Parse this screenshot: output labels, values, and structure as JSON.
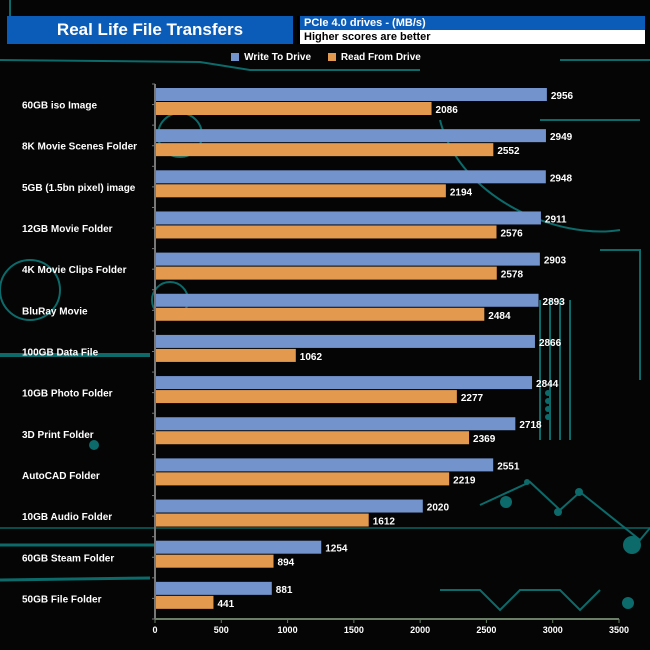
{
  "header": {
    "title": "Real Life File Transfers",
    "subtitle_units": "PCIe 4.0 drives - (MB/s)",
    "subtitle_note": "Higher scores are better"
  },
  "colors": {
    "write": "#7393cd",
    "read": "#e39a4f",
    "title_bg": "#0a5cb8",
    "decor": "#0d6a6a"
  },
  "chart_data": {
    "type": "bar",
    "orientation": "horizontal",
    "title": "Real Life File Transfers",
    "xlabel": "",
    "ylabel": "",
    "xlim": [
      0,
      3500
    ],
    "xticks": [
      0,
      500,
      1000,
      1500,
      2000,
      2500,
      3000,
      3500
    ],
    "legend_position": "top-center",
    "grid": false,
    "categories": [
      "60GB iso Image",
      "8K Movie Scenes Folder",
      "5GB (1.5bn pixel) image",
      "12GB Movie Folder",
      "4K Movie Clips Folder",
      "BluRay Movie",
      "100GB Data File",
      "10GB Photo Folder",
      "3D Print Folder",
      "AutoCAD Folder",
      "10GB Audio Folder",
      "60GB Steam Folder",
      "50GB File Folder"
    ],
    "series": [
      {
        "name": "Write To  Drive",
        "values": [
          2956,
          2949,
          2948,
          2911,
          2903,
          2893,
          2866,
          2844,
          2718,
          2551,
          2020,
          1254,
          881
        ]
      },
      {
        "name": "Read From  Drive",
        "values": [
          2086,
          2552,
          2194,
          2576,
          2578,
          2484,
          1062,
          2277,
          2369,
          2219,
          1612,
          894,
          441
        ]
      }
    ]
  }
}
